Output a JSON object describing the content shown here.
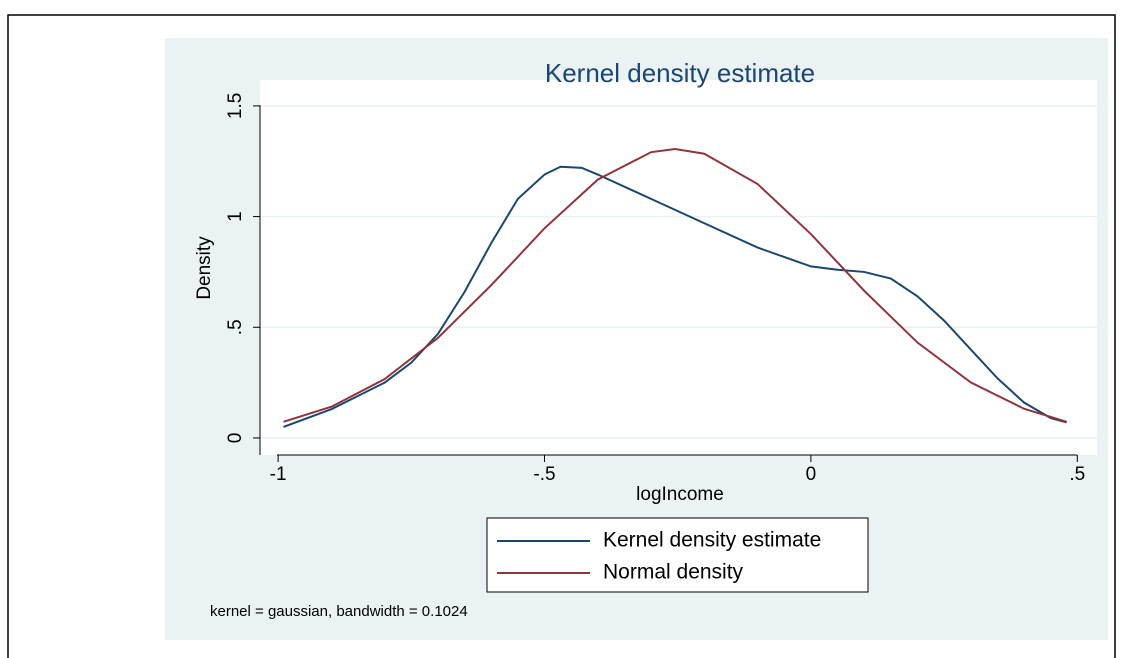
{
  "chart_data": {
    "type": "line",
    "title": "Kernel density estimate",
    "x_label": "logIncome",
    "y_label": "Density",
    "note": "kernel = gaussian, bandwidth = 0.1024",
    "series": [
      {
        "name": "Kernel density estimate",
        "color": "#1a476f",
        "x": [
          -0.99,
          -0.9,
          -0.8,
          -0.75,
          -0.7,
          -0.65,
          -0.6,
          -0.55,
          -0.5,
          -0.47,
          -0.43,
          -0.4,
          -0.3,
          -0.2,
          -0.1,
          0,
          0.05,
          0.1,
          0.15,
          0.2,
          0.25,
          0.3,
          0.35,
          0.4,
          0.45,
          0.48
        ],
        "values": [
          0.05,
          0.13,
          0.25,
          0.34,
          0.47,
          0.66,
          0.88,
          1.08,
          1.19,
          1.225,
          1.22,
          1.19,
          1.08,
          0.97,
          0.86,
          0.775,
          0.76,
          0.75,
          0.72,
          0.64,
          0.53,
          0.4,
          0.27,
          0.16,
          0.09,
          0.07
        ]
      },
      {
        "name": "Normal density",
        "color": "#90353b",
        "x": [
          -0.99,
          -0.9,
          -0.8,
          -0.7,
          -0.6,
          -0.5,
          -0.4,
          -0.3,
          -0.255,
          -0.2,
          -0.1,
          0,
          0.1,
          0.2,
          0.3,
          0.4,
          0.48
        ],
        "values": [
          0.073,
          0.141,
          0.266,
          0.452,
          0.69,
          0.947,
          1.167,
          1.291,
          1.305,
          1.284,
          1.147,
          0.921,
          0.665,
          0.431,
          0.251,
          0.132,
          0.073
        ]
      }
    ],
    "xlim": [
      -1.034,
      0.537
    ],
    "xticks": [
      -1,
      {
        "value": -0.5,
        "label": "-.5"
      },
      0,
      {
        "value": 0.5,
        "label": ".5"
      }
    ],
    "ylim": [
      -0.077,
      1.617
    ],
    "yticks": [
      0,
      {
        "value": 0.5,
        "label": ".5"
      },
      1,
      1.5
    ],
    "grid": true
  }
}
